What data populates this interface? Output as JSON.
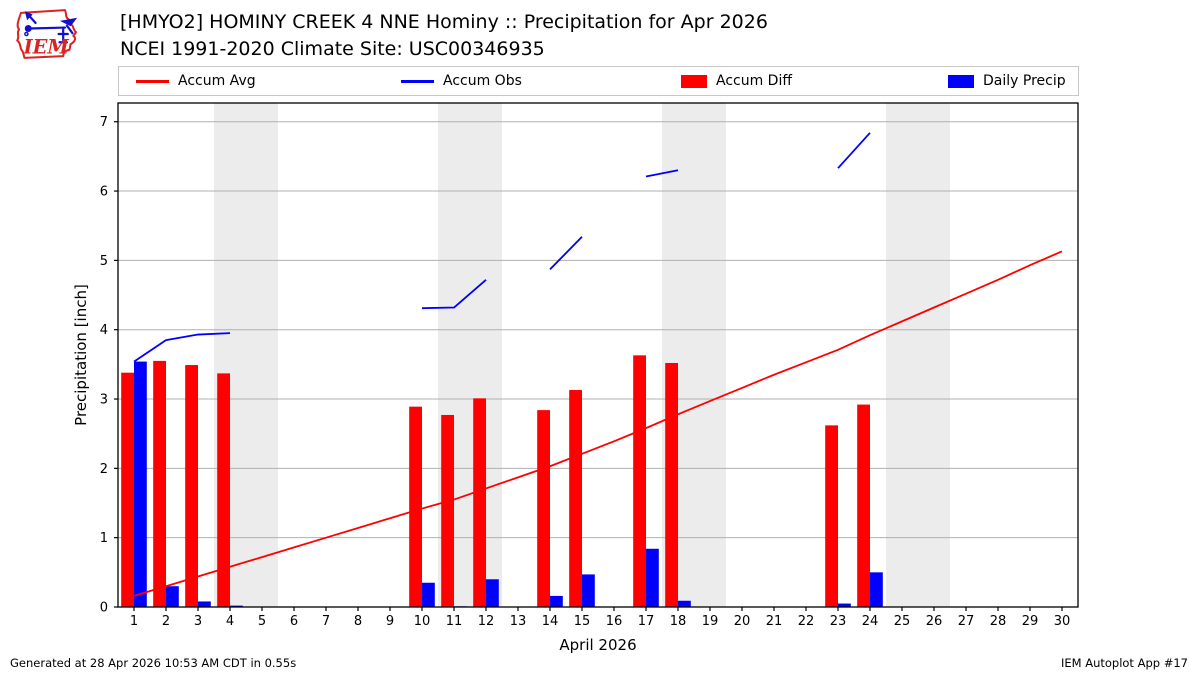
{
  "header": {
    "title_line1": "[HMYO2] HOMINY CREEK 4 NNE Hominy :: Precipitation for Apr 2026",
    "title_line2": "NCEI 1991-2020 Climate Site: USC00346935",
    "logo_text": "IEM"
  },
  "legend": {
    "items": [
      {
        "label": "Accum Avg",
        "swatch": "line",
        "color": "#ff0000"
      },
      {
        "label": "Accum Obs",
        "swatch": "line",
        "color": "#0000ff"
      },
      {
        "label": "Accum Diff",
        "swatch": "box",
        "color": "#ff0000"
      },
      {
        "label": "Daily Precip",
        "swatch": "box",
        "color": "#0000ff"
      }
    ]
  },
  "footer": {
    "generated": "Generated at 28 Apr 2026 10:53 AM CDT in 0.55s",
    "app": "IEM Autoplot App #17"
  },
  "colors": {
    "accum_avg": "#ff0000",
    "accum_obs": "#0000ff",
    "accum_diff": "#ff0000",
    "daily_precip": "#0000ff",
    "weekend_band": "#ececec",
    "gridline": "#b0b0b0",
    "logo_red": "#dd2222",
    "logo_blue": "#1111cc"
  },
  "chart_data": {
    "type": "bar",
    "title": "",
    "xlabel": "April 2026",
    "ylabel": "Precipitation [inch]",
    "xlim": [
      0.5,
      30.5
    ],
    "ylim": [
      0,
      7.27
    ],
    "x_ticks": [
      1,
      2,
      3,
      4,
      5,
      6,
      7,
      8,
      9,
      10,
      11,
      12,
      13,
      14,
      15,
      16,
      17,
      18,
      19,
      20,
      21,
      22,
      23,
      24,
      25,
      26,
      27,
      28,
      29,
      30
    ],
    "y_ticks": [
      0,
      1,
      2,
      3,
      4,
      5,
      6,
      7
    ],
    "grid": "horizontal",
    "legend_position": "top",
    "weekend_bands": [
      [
        3.5,
        5.5
      ],
      [
        10.5,
        12.5
      ],
      [
        17.5,
        19.5
      ],
      [
        24.5,
        26.5
      ]
    ],
    "series": [
      {
        "name": "Accum Avg",
        "type": "line",
        "color": "#ff0000",
        "x": [
          1,
          2,
          3,
          4,
          5,
          6,
          7,
          8,
          9,
          10,
          11,
          12,
          13,
          14,
          15,
          16,
          17,
          18,
          19,
          20,
          21,
          22,
          23,
          24,
          25,
          26,
          27,
          28,
          29,
          30
        ],
        "values": [
          0.16,
          0.3,
          0.44,
          0.58,
          0.72,
          0.86,
          1.0,
          1.14,
          1.28,
          1.42,
          1.55,
          1.71,
          1.87,
          2.03,
          2.21,
          2.39,
          2.58,
          2.78,
          2.97,
          3.16,
          3.35,
          3.53,
          3.71,
          3.92,
          4.12,
          4.32,
          4.52,
          4.72,
          4.93,
          5.13
        ]
      },
      {
        "name": "Accum Obs",
        "type": "line",
        "color": "#0000ff",
        "segments": [
          [
            [
              1,
              3.54
            ],
            [
              2,
              3.85
            ],
            [
              3,
              3.93
            ],
            [
              4,
              3.95
            ]
          ],
          [
            [
              10,
              4.31
            ],
            [
              11,
              4.32
            ],
            [
              12,
              4.72
            ]
          ],
          [
            [
              14,
              4.87
            ],
            [
              15,
              5.34
            ]
          ],
          [
            [
              17,
              6.21
            ],
            [
              18,
              6.3
            ]
          ],
          [
            [
              23,
              6.33
            ],
            [
              24,
              6.84
            ]
          ]
        ]
      },
      {
        "name": "Accum Diff",
        "type": "bar",
        "color": "#ff0000",
        "offset": -0.2,
        "bar_width": 0.4,
        "x": [
          1,
          2,
          3,
          4,
          10,
          11,
          12,
          14,
          15,
          17,
          18,
          23,
          24
        ],
        "values": [
          3.38,
          3.55,
          3.49,
          3.37,
          2.89,
          2.77,
          3.01,
          2.84,
          3.13,
          3.63,
          3.52,
          2.62,
          2.92
        ]
      },
      {
        "name": "Daily Precip",
        "type": "bar",
        "color": "#0000ff",
        "offset": 0.2,
        "bar_width": 0.4,
        "x": [
          1,
          2,
          3,
          4,
          10,
          11,
          12,
          14,
          15,
          17,
          18,
          23,
          24
        ],
        "values": [
          3.54,
          0.3,
          0.08,
          0.02,
          0.35,
          0.01,
          0.4,
          0.16,
          0.47,
          0.84,
          0.09,
          0.05,
          0.5
        ]
      }
    ]
  }
}
